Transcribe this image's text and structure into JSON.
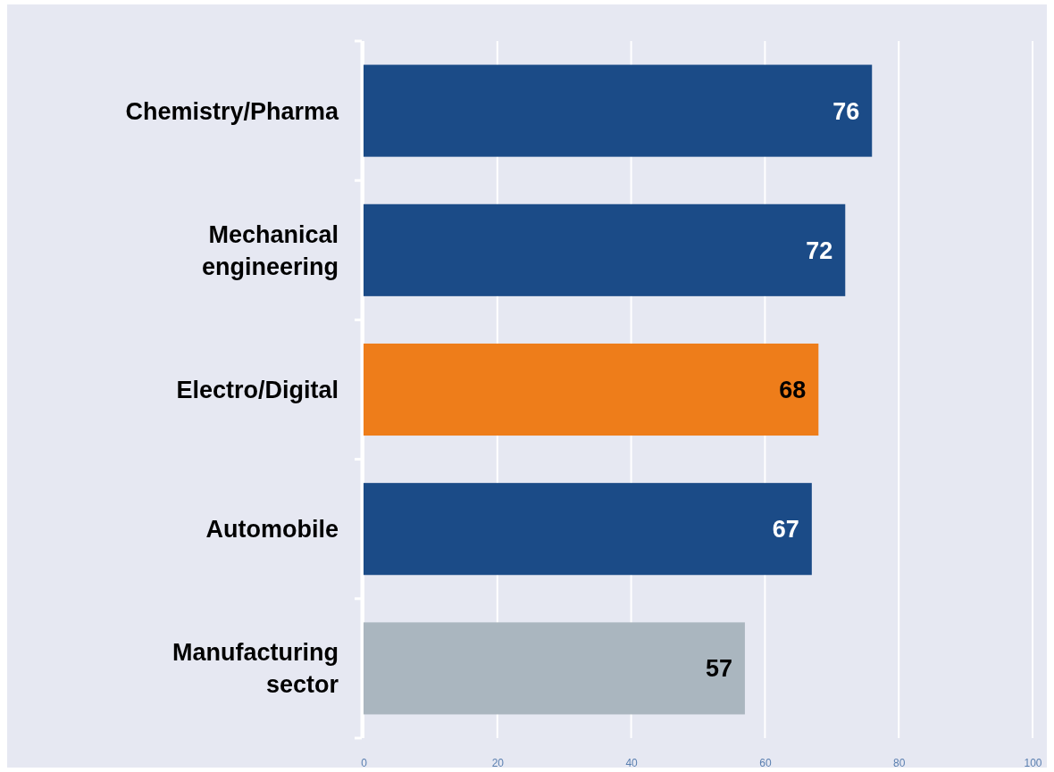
{
  "chart_data": {
    "type": "bar",
    "orientation": "horizontal",
    "categories": [
      "Chemistry/Pharma",
      "Mechanical engineering",
      "Electro/Digital",
      "Automobile",
      "Manufacturing sector"
    ],
    "values": [
      76,
      72,
      68,
      67,
      57
    ],
    "colors": [
      "#1b4b87",
      "#1b4b87",
      "#ee7d1a",
      "#1b4b87",
      "#aab6bf"
    ],
    "xlim": [
      0,
      100
    ],
    "xticks": [
      0,
      20,
      40,
      60,
      80,
      100
    ],
    "grid": "x",
    "data_labels": true
  }
}
